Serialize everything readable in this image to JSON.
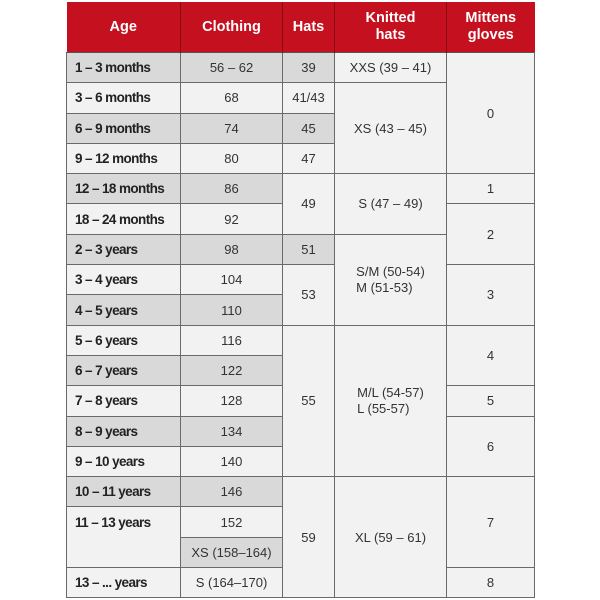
{
  "headers": {
    "age": "Age",
    "clothing": "Clothing",
    "hats": "Hats",
    "knitted_1": "Knitted",
    "knitted_2": "hats",
    "mittens_1": "Mittens",
    "mittens_2": "gloves"
  },
  "colors": {
    "header": "#c5101f",
    "shaded": "#d9d9da",
    "light": "#f2f2f3"
  },
  "ages": [
    "1 – 3 months",
    "3 – 6 months",
    "6 – 9 months",
    "9 – 12 months",
    "12 – 18 months",
    "18 – 24 months",
    "2 – 3 years",
    "3 – 4 years",
    "4 – 5 years",
    "5 – 6 years",
    "6 – 7 years",
    "7 – 8 years",
    "8 – 9 years",
    "9 – 10 years",
    "10 – 11 years",
    "11 – 13 years",
    "13 – ... years"
  ],
  "clothing": [
    "56 – 62",
    "68",
    "74",
    "80",
    "86",
    "92",
    "98",
    "104",
    "110",
    "116",
    "122",
    "128",
    "134",
    "140",
    "146",
    "152",
    "XS (158–164)",
    "S (164–170)"
  ],
  "hats": [
    "39",
    "41/43",
    "45",
    "47",
    "49",
    "51",
    "53",
    "55",
    "59"
  ],
  "knitted": {
    "xxs": "XXS (39 – 41)",
    "xs": "XS (43 – 45)",
    "s": "S (47 – 49)",
    "sm_1": "S/M (50-54)",
    "sm_2": "M (51-53)",
    "ml_1": "M/L (54-57)",
    "ml_2": "L (55-57)",
    "xl": "XL (59 – 61)"
  },
  "mittens": [
    "0",
    "1",
    "2",
    "3",
    "4",
    "5",
    "6",
    "7",
    "8"
  ]
}
